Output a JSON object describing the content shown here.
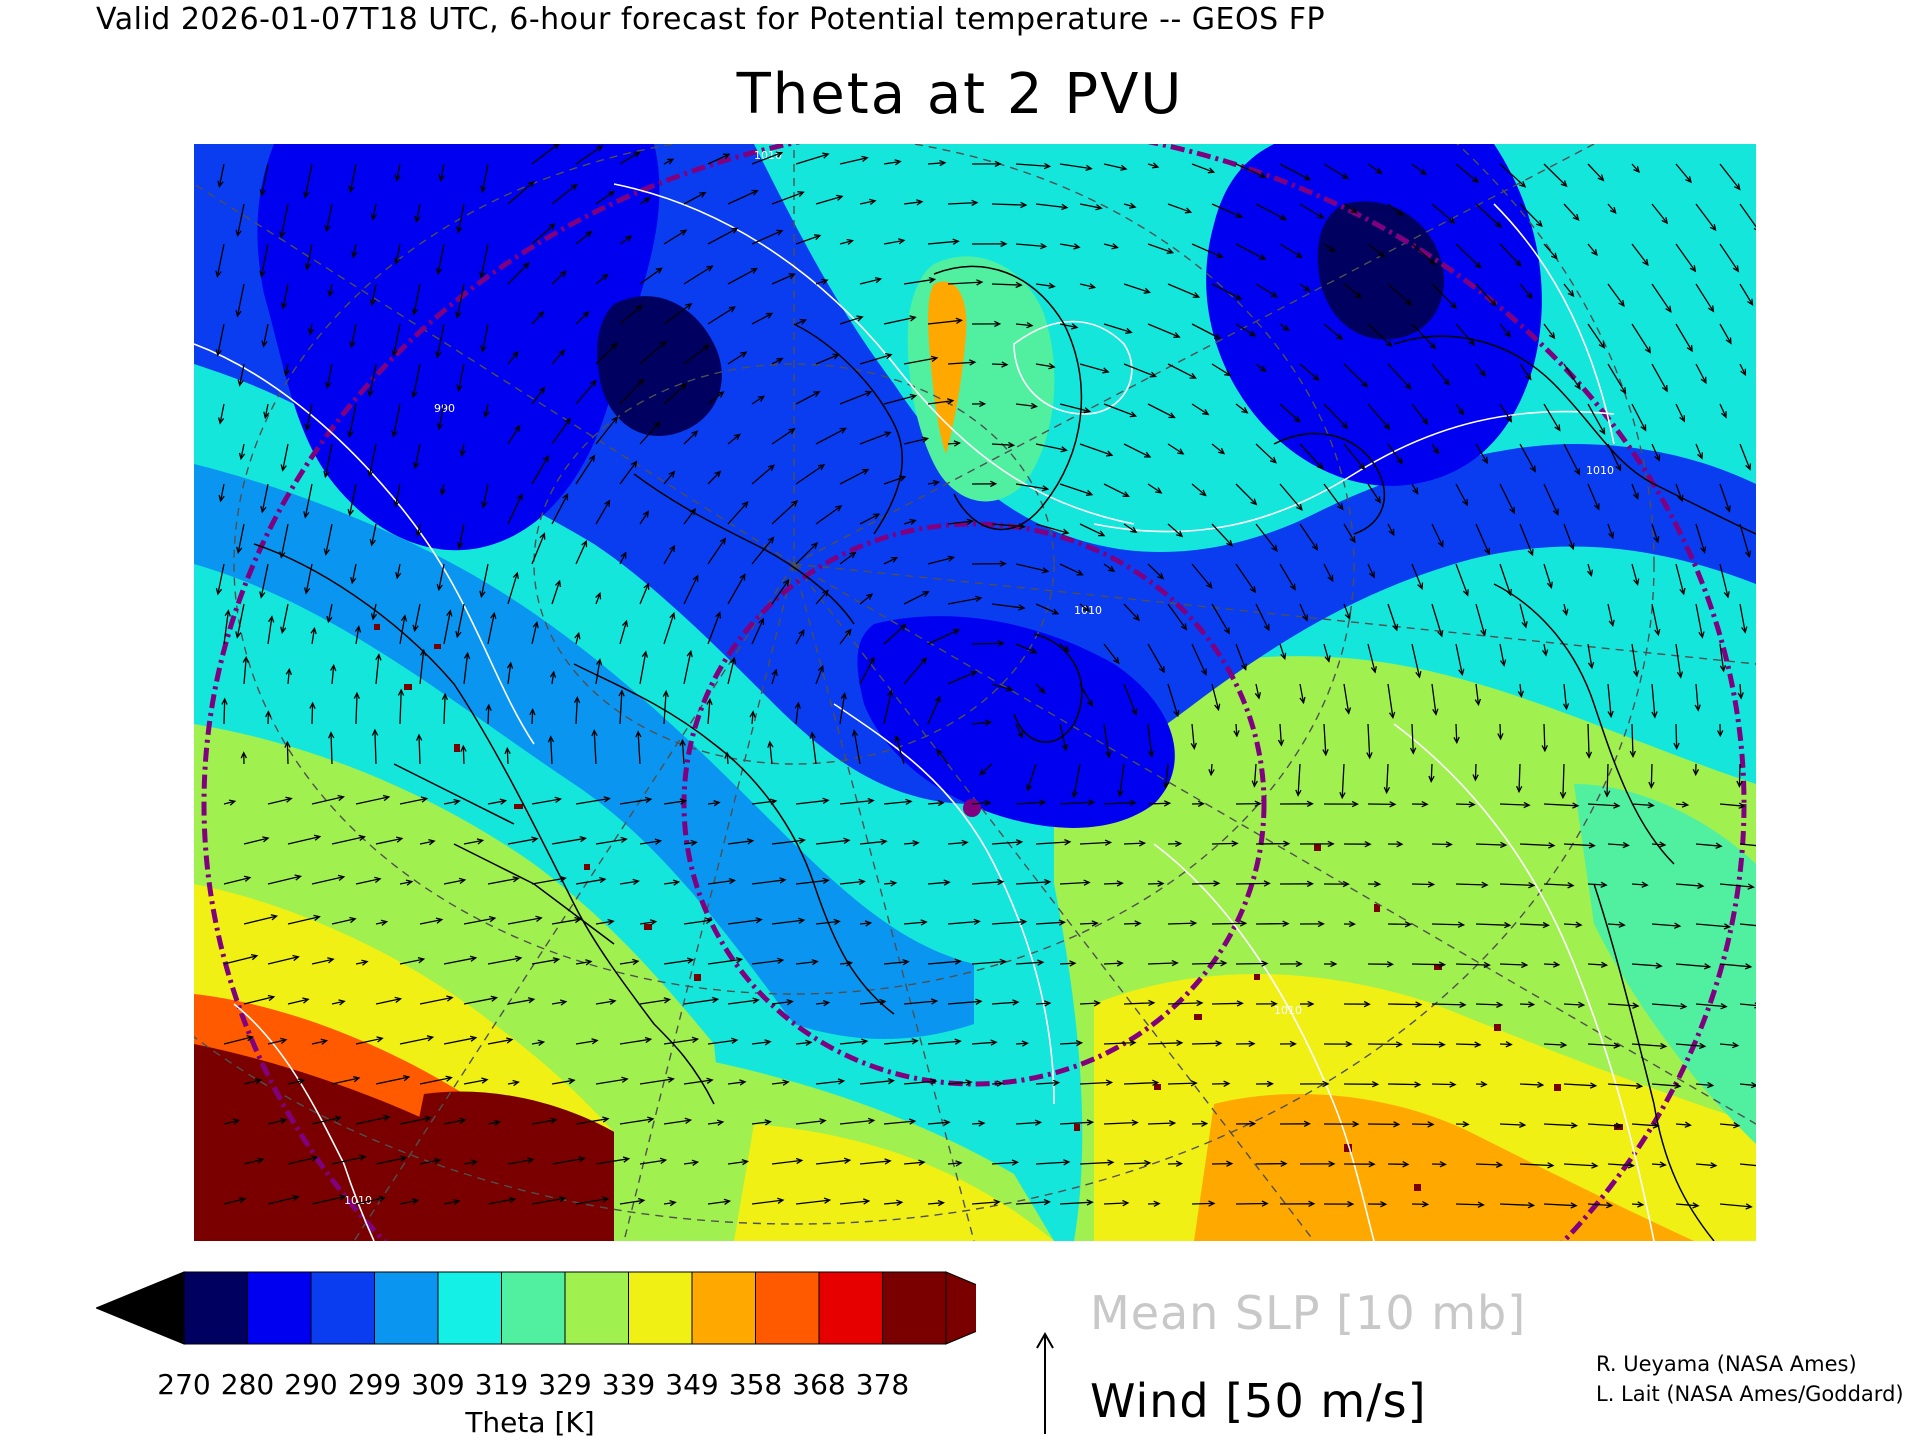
{
  "header": {
    "valid_line": "Valid 2026-01-07T18 UTC, 6-hour forecast for Potential temperature -- GEOS FP",
    "title": "Theta at 2 PVU"
  },
  "colorbar": {
    "label": "Theta [K]",
    "ticks": [
      "270",
      "280",
      "290",
      "299",
      "309",
      "319",
      "329",
      "339",
      "349",
      "358",
      "368",
      "378"
    ],
    "under_color": "#000000",
    "over_color": "#7a0000",
    "colors": [
      "#000060",
      "#0000f0",
      "#0a3cf0",
      "#0a96f0",
      "#14f0e6",
      "#50f0a0",
      "#a0f050",
      "#f0f014",
      "#ffa800",
      "#ff5a00",
      "#e60000",
      "#7a0000"
    ]
  },
  "legend": {
    "slp_label": "Mean SLP [10 mb]",
    "wind_label": "Wind [50 m/s]",
    "slp_contour_color": "#c8c8c8"
  },
  "credits": {
    "line1": "R. Ueyama (NASA Ames)",
    "line2": "L. Lait (NASA Ames/Goddard)"
  },
  "map": {
    "projection": "polar stereographic (North Atlantic / Arctic sector)",
    "slp_contour_labels": [
      "1010",
      "990",
      "1010",
      "1010",
      "1010",
      "1010"
    ],
    "overlay_colors": {
      "coastlines": "#000000",
      "graticule": "#505050",
      "range_ring": "#800080",
      "wind_vectors": "#000000",
      "slp_contours": "#ffffff"
    }
  }
}
